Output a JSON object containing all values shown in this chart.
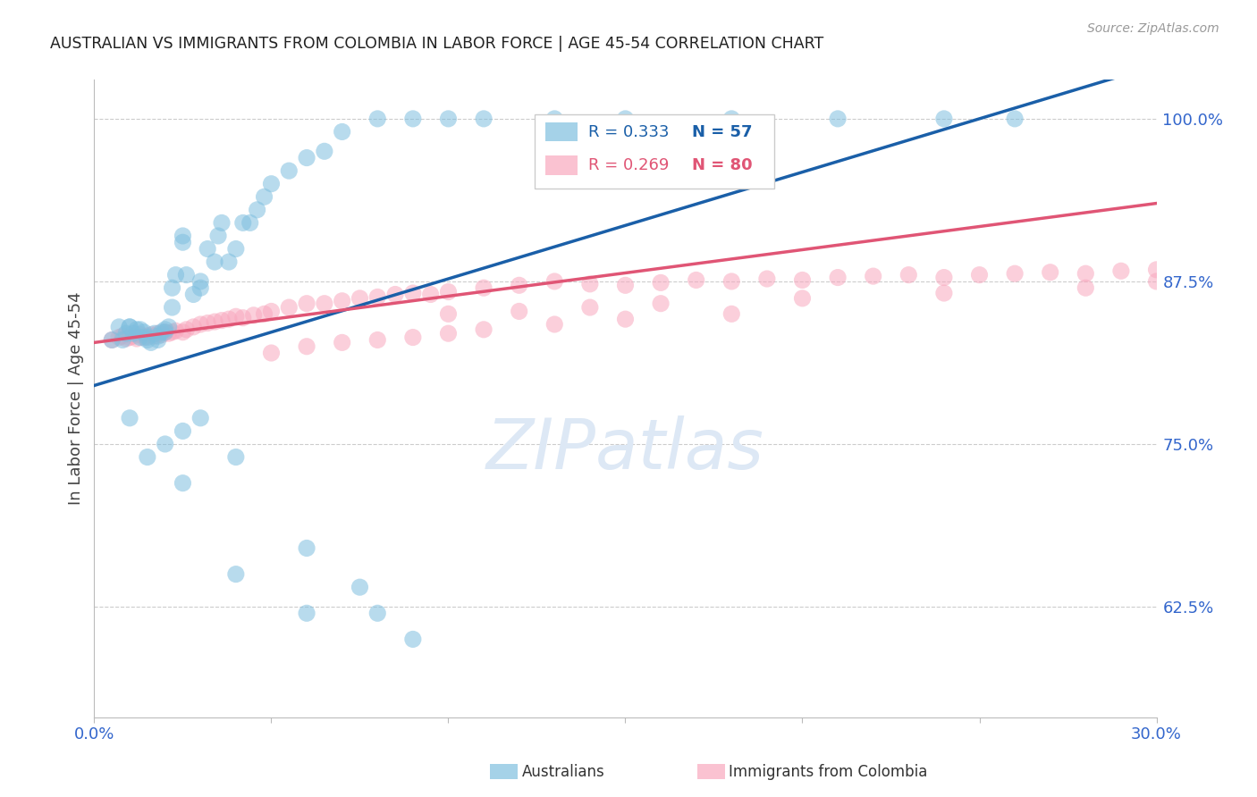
{
  "title": "AUSTRALIAN VS IMMIGRANTS FROM COLOMBIA IN LABOR FORCE | AGE 45-54 CORRELATION CHART",
  "source": "Source: ZipAtlas.com",
  "ylabel": "In Labor Force | Age 45-54",
  "x_min": 0.0,
  "x_max": 0.3,
  "y_min": 0.54,
  "y_max": 1.03,
  "right_ytick_labels": [
    "100.0%",
    "87.5%",
    "75.0%",
    "62.5%"
  ],
  "right_ytick_values": [
    1.0,
    0.875,
    0.75,
    0.625
  ],
  "blue_R": 0.333,
  "blue_N": 57,
  "pink_R": 0.269,
  "pink_N": 80,
  "blue_color": "#7fbfdf",
  "pink_color": "#f8a8be",
  "blue_line_color": "#1a5fa8",
  "pink_line_color": "#e05575",
  "blue_label": "Australians",
  "pink_label": "Immigrants from Colombia",
  "watermark": "ZIPatlas",
  "watermark_color": "#dde8f5",
  "axis_label_color": "#3366cc",
  "blue_scatter_x": [
    0.005,
    0.007,
    0.008,
    0.009,
    0.01,
    0.01,
    0.011,
    0.012,
    0.013,
    0.013,
    0.014,
    0.015,
    0.015,
    0.016,
    0.017,
    0.018,
    0.018,
    0.019,
    0.02,
    0.02,
    0.021,
    0.022,
    0.022,
    0.023,
    0.025,
    0.025,
    0.026,
    0.028,
    0.03,
    0.03,
    0.032,
    0.034,
    0.035,
    0.036,
    0.038,
    0.04,
    0.042,
    0.044,
    0.046,
    0.048,
    0.05,
    0.055,
    0.06,
    0.065,
    0.07,
    0.08,
    0.09,
    0.1,
    0.11,
    0.13,
    0.15,
    0.18,
    0.21,
    0.24,
    0.26,
    0.025,
    0.04,
    0.06
  ],
  "blue_scatter_y": [
    0.83,
    0.84,
    0.83,
    0.835,
    0.84,
    0.84,
    0.835,
    0.838,
    0.832,
    0.838,
    0.836,
    0.83,
    0.832,
    0.828,
    0.835,
    0.83,
    0.833,
    0.836,
    0.836,
    0.838,
    0.84,
    0.855,
    0.87,
    0.88,
    0.905,
    0.91,
    0.88,
    0.865,
    0.875,
    0.87,
    0.9,
    0.89,
    0.91,
    0.92,
    0.89,
    0.9,
    0.92,
    0.92,
    0.93,
    0.94,
    0.95,
    0.96,
    0.97,
    0.975,
    0.99,
    1.0,
    1.0,
    1.0,
    1.0,
    1.0,
    1.0,
    1.0,
    1.0,
    1.0,
    1.0,
    0.72,
    0.65,
    0.62
  ],
  "blue_outlier_x": [
    0.01,
    0.015,
    0.02,
    0.025,
    0.03,
    0.04,
    0.06,
    0.075,
    0.08,
    0.09
  ],
  "blue_outlier_y": [
    0.77,
    0.74,
    0.75,
    0.76,
    0.77,
    0.74,
    0.67,
    0.64,
    0.62,
    0.6
  ],
  "pink_scatter_x": [
    0.005,
    0.007,
    0.008,
    0.009,
    0.01,
    0.011,
    0.012,
    0.013,
    0.014,
    0.015,
    0.016,
    0.017,
    0.018,
    0.019,
    0.02,
    0.021,
    0.022,
    0.023,
    0.025,
    0.026,
    0.028,
    0.03,
    0.032,
    0.034,
    0.036,
    0.038,
    0.04,
    0.042,
    0.045,
    0.048,
    0.05,
    0.055,
    0.06,
    0.065,
    0.07,
    0.075,
    0.08,
    0.085,
    0.09,
    0.095,
    0.1,
    0.11,
    0.12,
    0.13,
    0.14,
    0.15,
    0.16,
    0.17,
    0.18,
    0.19,
    0.2,
    0.21,
    0.22,
    0.23,
    0.24,
    0.25,
    0.26,
    0.27,
    0.28,
    0.29,
    0.3,
    0.1,
    0.12,
    0.14,
    0.16,
    0.2,
    0.24,
    0.28,
    0.3,
    0.05,
    0.06,
    0.07,
    0.08,
    0.09,
    0.1,
    0.11,
    0.13,
    0.15,
    0.18
  ],
  "pink_scatter_y": [
    0.83,
    0.832,
    0.833,
    0.831,
    0.832,
    0.833,
    0.831,
    0.834,
    0.832,
    0.833,
    0.834,
    0.833,
    0.835,
    0.834,
    0.836,
    0.835,
    0.836,
    0.837,
    0.836,
    0.838,
    0.84,
    0.842,
    0.843,
    0.844,
    0.845,
    0.846,
    0.848,
    0.847,
    0.849,
    0.85,
    0.852,
    0.855,
    0.858,
    0.858,
    0.86,
    0.862,
    0.863,
    0.865,
    0.866,
    0.865,
    0.867,
    0.87,
    0.872,
    0.875,
    0.873,
    0.872,
    0.874,
    0.876,
    0.875,
    0.877,
    0.876,
    0.878,
    0.879,
    0.88,
    0.878,
    0.88,
    0.881,
    0.882,
    0.881,
    0.883,
    0.884,
    0.85,
    0.852,
    0.855,
    0.858,
    0.862,
    0.866,
    0.87,
    0.875,
    0.82,
    0.825,
    0.828,
    0.83,
    0.832,
    0.835,
    0.838,
    0.842,
    0.846,
    0.85
  ]
}
